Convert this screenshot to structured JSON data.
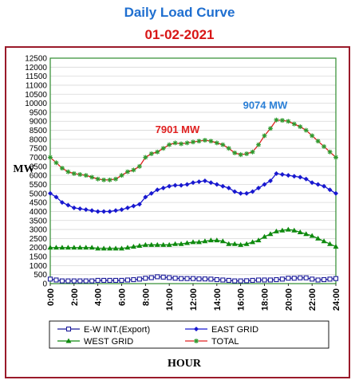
{
  "title": "Daily Load Curve",
  "subtitle": "01-02-2021",
  "chart_data": {
    "type": "line",
    "xlabel": "HOUR",
    "ylabel": "MW",
    "xlim": [
      0,
      24
    ],
    "ylim": [
      0,
      12500
    ],
    "y_ticks": [
      0,
      500,
      1000,
      1500,
      2000,
      2500,
      3000,
      3500,
      4000,
      4500,
      5000,
      5500,
      6000,
      6500,
      7000,
      7500,
      8000,
      8500,
      9000,
      9500,
      10000,
      10500,
      11000,
      11500,
      12000,
      12500
    ],
    "x_ticks": [
      "0:00",
      "2:00",
      "4:00",
      "6:00",
      "8:00",
      "10:00",
      "12:00",
      "14:00",
      "16:00",
      "18:00",
      "20:00",
      "22:00",
      "24:00"
    ],
    "grid": true,
    "legend_position": "bottom",
    "x": [
      0,
      0.5,
      1,
      1.5,
      2,
      2.5,
      3,
      3.5,
      4,
      4.5,
      5,
      5.5,
      6,
      6.5,
      7,
      7.5,
      8,
      8.5,
      9,
      9.5,
      10,
      10.5,
      11,
      11.5,
      12,
      12.5,
      13,
      13.5,
      14,
      14.5,
      15,
      15.5,
      16,
      16.5,
      17,
      17.5,
      18,
      18.5,
      19,
      19.5,
      20,
      20.5,
      21,
      21.5,
      22,
      22.5,
      23,
      23.5,
      24
    ],
    "series": [
      {
        "name": "E-W INT.(Export)",
        "color": "#1a1a9a",
        "marker": "square-open",
        "values": [
          250,
          200,
          150,
          150,
          150,
          150,
          150,
          150,
          180,
          180,
          180,
          180,
          180,
          200,
          220,
          250,
          300,
          330,
          380,
          360,
          330,
          300,
          280,
          280,
          280,
          260,
          260,
          250,
          220,
          200,
          180,
          150,
          150,
          160,
          180,
          200,
          200,
          200,
          220,
          250,
          300,
          300,
          320,
          320,
          250,
          200,
          220,
          250,
          280
        ]
      },
      {
        "name": "EAST GRID",
        "color": "#1818d0",
        "marker": "diamond",
        "values": [
          5000,
          4800,
          4500,
          4350,
          4200,
          4150,
          4100,
          4050,
          4000,
          4000,
          4000,
          4050,
          4100,
          4200,
          4300,
          4400,
          4800,
          5000,
          5200,
          5300,
          5400,
          5450,
          5450,
          5500,
          5600,
          5650,
          5700,
          5600,
          5500,
          5400,
          5300,
          5100,
          5000,
          5000,
          5100,
          5300,
          5500,
          5700,
          6100,
          6050,
          6000,
          5950,
          5900,
          5800,
          5600,
          5500,
          5400,
          5200,
          5000
        ]
      },
      {
        "name": "WEST GRID",
        "color": "#0e8a0e",
        "marker": "triangle",
        "values": [
          2000,
          2000,
          2000,
          2000,
          2000,
          2000,
          2000,
          2000,
          1950,
          1950,
          1950,
          1950,
          1950,
          2000,
          2050,
          2100,
          2150,
          2150,
          2150,
          2150,
          2150,
          2200,
          2200,
          2250,
          2300,
          2300,
          2350,
          2400,
          2400,
          2350,
          2200,
          2200,
          2150,
          2200,
          2300,
          2400,
          2600,
          2750,
          2900,
          2950,
          3000,
          2950,
          2850,
          2750,
          2650,
          2500,
          2350,
          2200,
          2050
        ]
      },
      {
        "name": "TOTAL",
        "color": "#e02020",
        "marker": "star",
        "marker_color": "#2e9a2e",
        "values": [
          7000,
          6700,
          6400,
          6200,
          6100,
          6050,
          6000,
          5900,
          5800,
          5750,
          5750,
          5800,
          6000,
          6200,
          6300,
          6500,
          7000,
          7200,
          7300,
          7500,
          7700,
          7800,
          7750,
          7800,
          7850,
          7901,
          7950,
          7900,
          7800,
          7700,
          7500,
          7250,
          7150,
          7200,
          7300,
          7700,
          8200,
          8600,
          9074,
          9050,
          9000,
          8850,
          8700,
          8500,
          8200,
          7900,
          7600,
          7300,
          7000
        ]
      }
    ],
    "annotations": [
      {
        "text": "7901 MW",
        "x": 12.5,
        "y": 7901,
        "color": "#e02020"
      },
      {
        "text": "9074 MW",
        "x": 19,
        "y": 9074,
        "color": "#2a7fd6"
      }
    ],
    "colors": {
      "plot_border": "#2e8b2e",
      "frame_border": "#9a1a2a",
      "grid": "#d8d8d8",
      "title": "#1f6fd0",
      "subtitle": "#d81616"
    }
  }
}
